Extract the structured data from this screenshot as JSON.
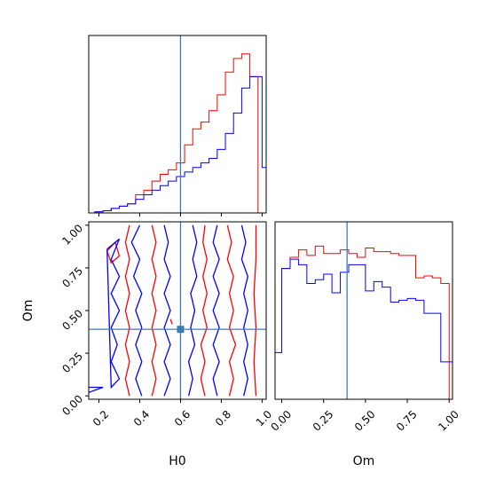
{
  "chart_data": [
    {
      "type": "histogram",
      "panel": "top-left",
      "variable": "H0",
      "xlim": [
        0.15,
        1.02
      ],
      "truth": 0.6,
      "series": [
        {
          "color": "#ff0000",
          "edges": [
            0.18,
            0.22,
            0.26,
            0.3,
            0.34,
            0.38,
            0.42,
            0.46,
            0.5,
            0.54,
            0.58,
            0.62,
            0.66,
            0.7,
            0.74,
            0.78,
            0.82,
            0.86,
            0.9,
            0.94,
            0.98,
            1.0
          ],
          "values": [
            0.5,
            1,
            2,
            3,
            4,
            8,
            10,
            14,
            17,
            19,
            22,
            30,
            37,
            40,
            45,
            52,
            62,
            68,
            70,
            60,
            0
          ]
        },
        {
          "color": "#0000ff",
          "edges": [
            0.18,
            0.22,
            0.26,
            0.3,
            0.34,
            0.38,
            0.42,
            0.46,
            0.5,
            0.54,
            0.58,
            0.62,
            0.66,
            0.7,
            0.74,
            0.78,
            0.82,
            0.86,
            0.9,
            0.94,
            0.98,
            1.0,
            1.02
          ],
          "values": [
            0.5,
            1,
            2,
            3,
            4,
            6,
            8,
            10,
            12,
            14,
            16,
            18,
            20,
            22,
            24,
            28,
            35,
            44,
            55,
            60,
            60,
            20
          ]
        }
      ],
      "ylim": [
        0,
        75
      ]
    },
    {
      "type": "contour",
      "panel": "bottom-left",
      "xlabel": "H0",
      "ylabel": "Om",
      "xlim": [
        0.15,
        1.02
      ],
      "ylim": [
        -0.02,
        1.02
      ],
      "xticks": [
        "0.2",
        "0.4",
        "0.6",
        "0.8",
        "1.0"
      ],
      "yticks": [
        "0.00",
        "0.25",
        "0.50",
        "0.75",
        "1.00"
      ],
      "truth": {
        "x": 0.6,
        "y": 0.39
      },
      "series": [
        {
          "color": "#ff0000",
          "contours": [
            [
              [
                0.35,
                1.0
              ],
              [
                0.33,
                0.9
              ],
              [
                0.35,
                0.8
              ],
              [
                0.33,
                0.7
              ],
              [
                0.35,
                0.6
              ],
              [
                0.33,
                0.5
              ],
              [
                0.35,
                0.4
              ],
              [
                0.33,
                0.3
              ],
              [
                0.35,
                0.2
              ],
              [
                0.33,
                0.1
              ],
              [
                0.35,
                0.0
              ]
            ],
            [
              [
                0.46,
                1.0
              ],
              [
                0.48,
                0.9
              ],
              [
                0.46,
                0.8
              ],
              [
                0.48,
                0.7
              ],
              [
                0.46,
                0.6
              ],
              [
                0.48,
                0.5
              ],
              [
                0.46,
                0.4
              ],
              [
                0.48,
                0.3
              ],
              [
                0.46,
                0.2
              ],
              [
                0.48,
                0.1
              ],
              [
                0.46,
                0.0
              ]
            ],
            [
              [
                0.72,
                0.0
              ],
              [
                0.7,
                0.1
              ],
              [
                0.72,
                0.2
              ],
              [
                0.7,
                0.3
              ],
              [
                0.73,
                0.4
              ],
              [
                0.71,
                0.5
              ],
              [
                0.73,
                0.6
              ],
              [
                0.71,
                0.7
              ],
              [
                0.73,
                0.8
              ],
              [
                0.71,
                0.9
              ],
              [
                0.72,
                1.0
              ]
            ],
            [
              [
                0.83,
                1.0
              ],
              [
                0.85,
                0.9
              ],
              [
                0.83,
                0.8
              ],
              [
                0.86,
                0.7
              ],
              [
                0.84,
                0.6
              ],
              [
                0.86,
                0.5
              ],
              [
                0.84,
                0.4
              ],
              [
                0.87,
                0.3
              ],
              [
                0.84,
                0.2
              ],
              [
                0.86,
                0.1
              ],
              [
                0.84,
                0.0
              ]
            ],
            [
              [
                0.97,
                0.0
              ],
              [
                0.96,
                0.2
              ],
              [
                0.97,
                0.4
              ],
              [
                0.96,
                0.6
              ],
              [
                0.97,
                0.8
              ],
              [
                0.97,
                1.0
              ]
            ],
            [
              [
                0.24,
                0.85
              ],
              [
                0.28,
                0.9
              ],
              [
                0.3,
                0.82
              ],
              [
                0.26,
                0.78
              ],
              [
                0.24,
                0.85
              ]
            ],
            [
              [
                0.55,
                0.45
              ],
              [
                0.56,
                0.42
              ],
              [
                0.55,
                0.45
              ]
            ]
          ]
        },
        {
          "color": "#0000ff",
          "contours": [
            [
              [
                0.24,
                0.86
              ],
              [
                0.3,
                0.92
              ],
              [
                0.26,
                0.8
              ],
              [
                0.3,
                0.7
              ],
              [
                0.26,
                0.6
              ],
              [
                0.3,
                0.5
              ],
              [
                0.26,
                0.4
              ],
              [
                0.29,
                0.3
              ],
              [
                0.26,
                0.2
              ],
              [
                0.3,
                0.1
              ],
              [
                0.26,
                0.05
              ],
              [
                0.24,
                0.86
              ]
            ],
            [
              [
                0.4,
                1.0
              ],
              [
                0.36,
                0.9
              ],
              [
                0.4,
                0.8
              ],
              [
                0.37,
                0.7
              ],
              [
                0.41,
                0.6
              ],
              [
                0.38,
                0.5
              ],
              [
                0.41,
                0.4
              ],
              [
                0.38,
                0.3
              ],
              [
                0.41,
                0.2
              ],
              [
                0.38,
                0.1
              ],
              [
                0.41,
                0.0
              ]
            ],
            [
              [
                0.52,
                1.0
              ],
              [
                0.54,
                0.9
              ],
              [
                0.52,
                0.8
              ],
              [
                0.55,
                0.7
              ],
              [
                0.52,
                0.6
              ],
              [
                0.55,
                0.5
              ],
              [
                0.52,
                0.4
              ],
              [
                0.55,
                0.3
              ],
              [
                0.52,
                0.2
              ],
              [
                0.55,
                0.1
              ],
              [
                0.52,
                0.0
              ]
            ],
            [
              [
                0.64,
                0.0
              ],
              [
                0.66,
                0.1
              ],
              [
                0.64,
                0.2
              ],
              [
                0.67,
                0.3
              ],
              [
                0.65,
                0.4
              ],
              [
                0.67,
                0.5
              ],
              [
                0.65,
                0.6
              ],
              [
                0.68,
                0.7
              ],
              [
                0.66,
                0.8
              ],
              [
                0.68,
                0.9
              ],
              [
                0.66,
                1.0
              ]
            ],
            [
              [
                0.78,
                1.0
              ],
              [
                0.76,
                0.9
              ],
              [
                0.79,
                0.8
              ],
              [
                0.76,
                0.7
              ],
              [
                0.79,
                0.6
              ],
              [
                0.76,
                0.5
              ],
              [
                0.79,
                0.4
              ],
              [
                0.76,
                0.3
              ],
              [
                0.79,
                0.2
              ],
              [
                0.76,
                0.1
              ],
              [
                0.78,
                0.0
              ]
            ],
            [
              [
                0.9,
                1.0
              ],
              [
                0.92,
                0.9
              ],
              [
                0.9,
                0.8
              ],
              [
                0.93,
                0.7
              ],
              [
                0.91,
                0.6
              ],
              [
                0.93,
                0.5
              ],
              [
                0.91,
                0.4
              ],
              [
                0.93,
                0.3
              ],
              [
                0.91,
                0.2
              ],
              [
                0.93,
                0.1
              ],
              [
                0.91,
                0.0
              ]
            ],
            [
              [
                0.15,
                0.05
              ],
              [
                0.22,
                0.05
              ],
              [
                0.15,
                0.02
              ]
            ]
          ]
        }
      ]
    },
    {
      "type": "histogram",
      "panel": "bottom-right",
      "variable": "Om",
      "xlabel": "Om",
      "xlim": [
        -0.04,
        1.02
      ],
      "xticks": [
        "0.00",
        "0.25",
        "0.50",
        "0.75",
        "1.00"
      ],
      "truth": 0.39,
      "series": [
        {
          "color": "#ff0000",
          "edges": [
            0.0,
            0.05,
            0.1,
            0.15,
            0.2,
            0.25,
            0.3,
            0.35,
            0.4,
            0.45,
            0.5,
            0.55,
            0.6,
            0.65,
            0.7,
            0.75,
            0.8,
            0.85,
            0.9,
            0.95,
            1.0
          ],
          "values": [
            0.7,
            0.76,
            0.8,
            0.77,
            0.82,
            0.78,
            0.78,
            0.8,
            0.78,
            0.76,
            0.81,
            0.79,
            0.79,
            0.78,
            0.77,
            0.77,
            0.65,
            0.66,
            0.65,
            0.62
          ],
          "start": 0.62
        },
        {
          "color": "#0000ff",
          "edges": [
            -0.04,
            0.0,
            0.05,
            0.1,
            0.15,
            0.2,
            0.25,
            0.3,
            0.35,
            0.4,
            0.45,
            0.5,
            0.55,
            0.6,
            0.65,
            0.7,
            0.75,
            0.8,
            0.85,
            0.9,
            0.95,
            1.0,
            1.02
          ],
          "values": [
            0.25,
            0.7,
            0.75,
            0.72,
            0.62,
            0.64,
            0.67,
            0.57,
            0.68,
            0.72,
            0.72,
            0.58,
            0.63,
            0.6,
            0.52,
            0.53,
            0.54,
            0.53,
            0.46,
            0.46,
            0.2,
            0.2
          ]
        }
      ],
      "ylim": [
        0,
        0.95
      ]
    }
  ],
  "colors": {
    "truth": "#3f7ab5",
    "red": "#ff0000",
    "blue": "#0000ff"
  }
}
